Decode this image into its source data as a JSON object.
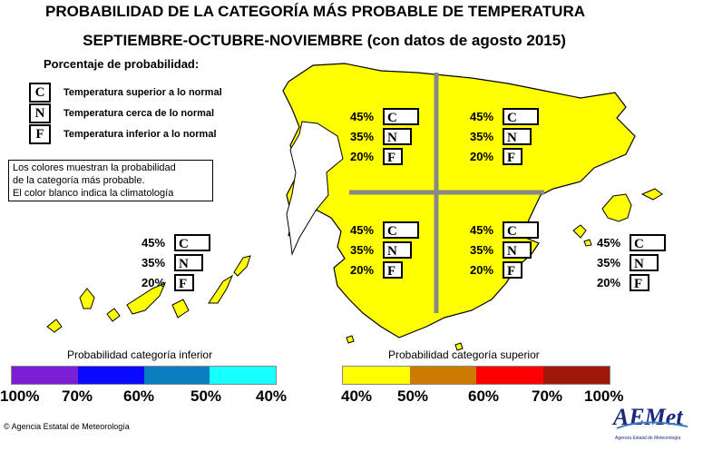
{
  "title_line1": "PROBABILIDAD DE LA CATEGORÍA MÁS PROBABLE DE TEMPERATURA",
  "title_line2": "SEPTIEMBRE-OCTUBRE-NOVIEMBRE (con datos de agosto 2015)",
  "legend": {
    "heading": "Porcentaje de probabilidad:",
    "items": [
      {
        "code": "C",
        "text": "Temperatura superior a lo normal"
      },
      {
        "code": "N",
        "text": "Temperatura cerca de lo normal"
      },
      {
        "code": "F",
        "text": "Temperatura inferior a lo normal"
      }
    ]
  },
  "note": {
    "line1": "Los colores muestran la probabilidad",
    "line2": "de la categoría más probable.",
    "line3": "El color blanco indica la climatología"
  },
  "regions": [
    {
      "C": "45%",
      "N": "35%",
      "F": "20%"
    },
    {
      "C": "45%",
      "N": "35%",
      "F": "20%"
    },
    {
      "C": "45%",
      "N": "35%",
      "F": "20%"
    },
    {
      "C": "45%",
      "N": "35%",
      "F": "20%"
    },
    {
      "C": "45%",
      "N": "35%",
      "F": "20%"
    },
    {
      "C": "45%",
      "N": "35%",
      "F": "20%"
    }
  ],
  "colorbars": {
    "lower": {
      "title": "Probabilidad categoría inferior",
      "ticks": [
        "100%",
        "70%",
        "60%",
        "50%",
        "40%"
      ],
      "colors": [
        "#7a1fd6",
        "#0a0aff",
        "#0a7fbf",
        "#18ffff"
      ]
    },
    "upper": {
      "title": "Probabilidad categoría superior",
      "ticks": [
        "40%",
        "50%",
        "60%",
        "70%",
        "100%"
      ],
      "colors": [
        "#ffff00",
        "#cc7a00",
        "#ff0000",
        "#a01808"
      ]
    }
  },
  "map_fill": "#ffff00",
  "footer": "Agencia Estatal de Meteorología",
  "logo_text": "AEMet",
  "logo_sub": "Agencia Estatal de Meteorología"
}
